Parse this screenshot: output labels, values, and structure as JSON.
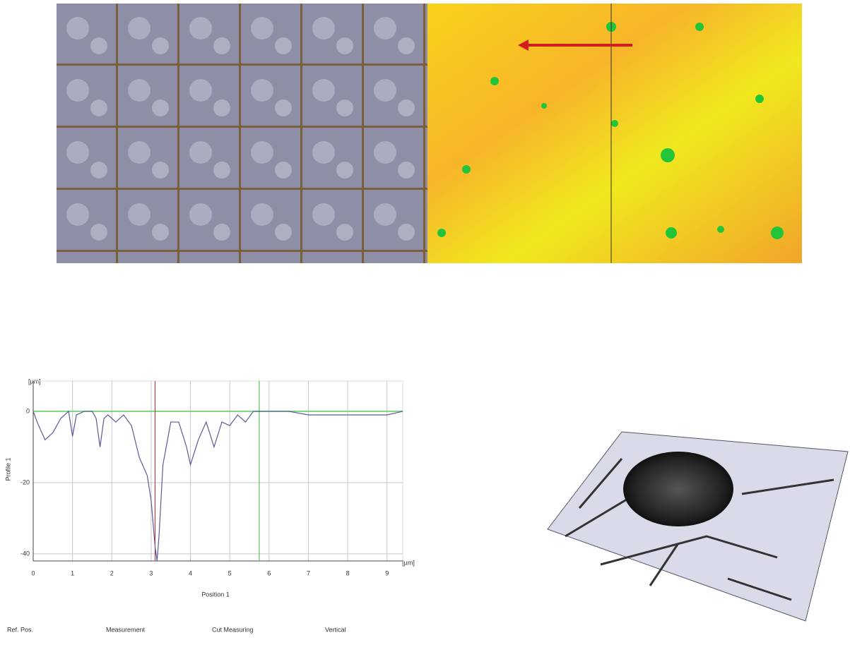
{
  "chart_data": {
    "type": "line",
    "x_label": "Position 1",
    "y_label": "Profile 1",
    "y_unit": "[µm]",
    "x_unit": "[µm]",
    "x": [
      0,
      0.1,
      0.3,
      0.5,
      0.7,
      0.9,
      1.0,
      1.1,
      1.3,
      1.5,
      1.6,
      1.7,
      1.8,
      1.9,
      2.1,
      2.3,
      2.5,
      2.7,
      2.9,
      3.0,
      3.1,
      3.15,
      3.2,
      3.3,
      3.5,
      3.7,
      3.9,
      4.0,
      4.2,
      4.4,
      4.6,
      4.8,
      5.0,
      5.2,
      5.4,
      5.6,
      6.0,
      6.5,
      7.0,
      8.0,
      9.0,
      9.4
    ],
    "series": [
      {
        "name": "Profile 1",
        "color": "#5a5a9a",
        "values": [
          0,
          -3,
          -8,
          -6,
          -2,
          0,
          -7,
          -1,
          0,
          0,
          -2,
          -10,
          -2,
          -1,
          -3,
          -1,
          -4,
          -13,
          -18,
          -25,
          -38,
          -42,
          -35,
          -15,
          -3,
          -3,
          -10,
          -15,
          -8,
          -3,
          -10,
          -3,
          -4,
          -1,
          -3,
          0,
          0,
          0,
          -1,
          -1,
          -1,
          0
        ]
      }
    ],
    "xlim": [
      0,
      9.4
    ],
    "ylim": [
      -42,
      8.5
    ],
    "xticks": [
      0,
      1,
      2,
      3,
      4,
      5,
      6,
      7,
      8,
      9
    ],
    "yticks": [
      0,
      -20,
      -40
    ],
    "grid": true,
    "ref_position": 5.75,
    "measure_position": 3.1,
    "legend": [
      "Ref. Pos.",
      "Measurement",
      "Cut Measuring",
      "Vertical"
    ]
  }
}
